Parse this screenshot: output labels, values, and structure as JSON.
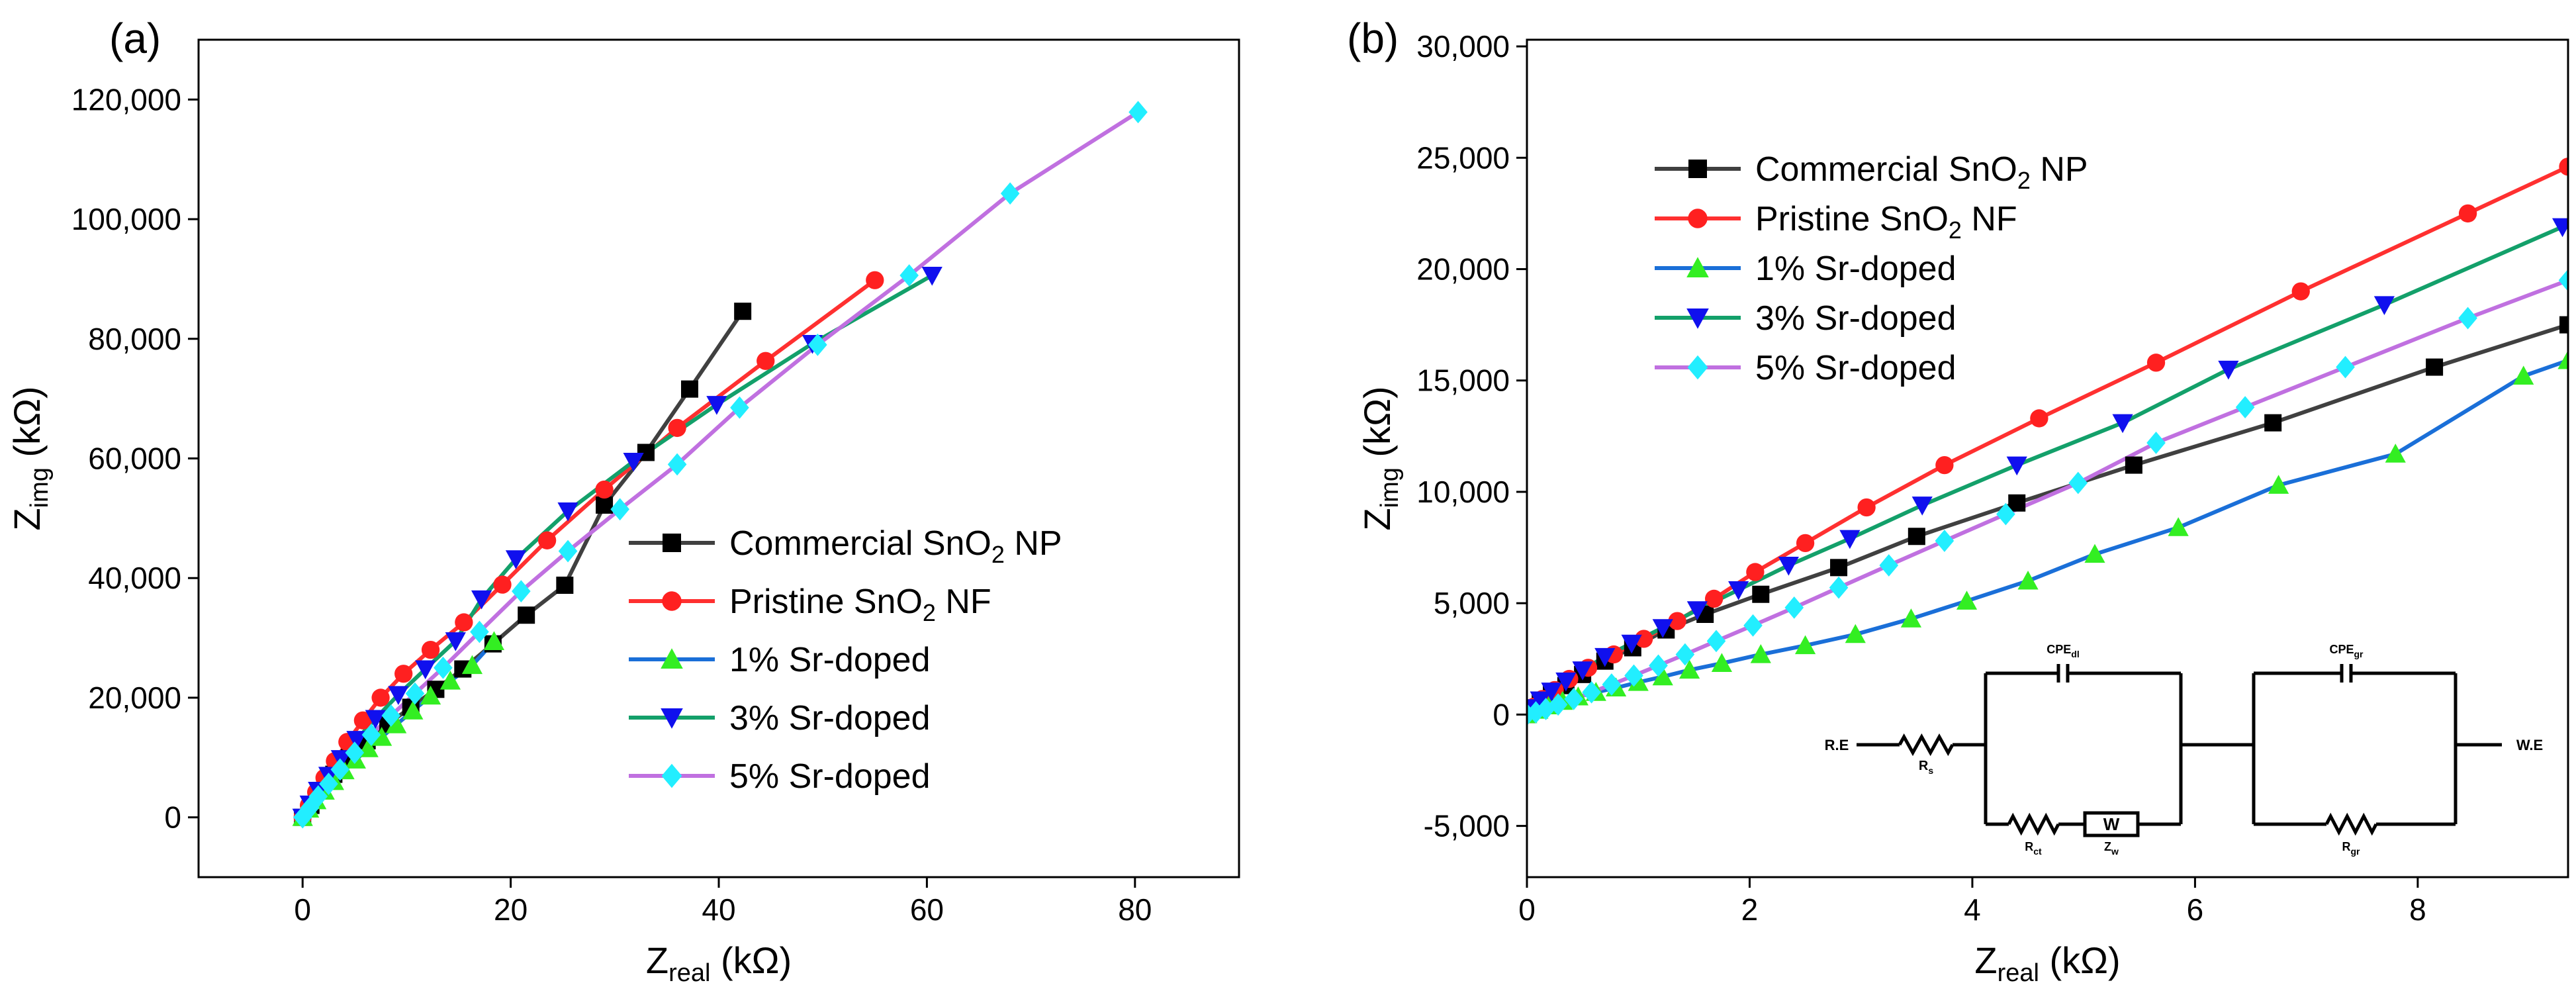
{
  "chart_data": [
    {
      "type": "line",
      "panel_label": "(a)",
      "xlabel": {
        "main": "Z",
        "sub": "real",
        "unit": " (kΩ)"
      },
      "ylabel": {
        "main": "Z",
        "sub": "img",
        "unit": " (kΩ)"
      },
      "xlim": [
        -10,
        90
      ],
      "ylim": [
        -10000,
        130000
      ],
      "xticks": [
        0,
        20,
        40,
        60,
        80
      ],
      "xtick_labels": [
        "0",
        "20",
        "40",
        "60",
        "80"
      ],
      "yticks": [
        0,
        20000,
        40000,
        60000,
        80000,
        100000,
        120000
      ],
      "ytick_labels": [
        "0",
        "20,000",
        "40,000",
        "60,000",
        "80,000",
        "100,000",
        "120,000"
      ],
      "grid": false,
      "legend_position": "center-right",
      "series": [
        {
          "name": "Commercial SnO2 NP",
          "name_main": "Commercial SnO",
          "name_sub": "2",
          "name_tail": " NP",
          "color": "#404040",
          "marker": "square",
          "x": [
            0,
            0.8,
            1.8,
            3,
            4.5,
            6.2,
            8.2,
            10.4,
            12.8,
            15.4,
            18.3,
            21.5,
            25.2,
            29,
            33,
            37.2,
            42.3
          ],
          "y": [
            0,
            2000,
            4500,
            7200,
            10000,
            12800,
            15600,
            18400,
            21400,
            24800,
            29000,
            33800,
            38800,
            52200,
            61000,
            71600,
            84600
          ]
        },
        {
          "name": "Pristine SnO2 NF",
          "name_main": "Pristine SnO",
          "name_sub": "2",
          "name_tail": " NF",
          "color": "#ff3030",
          "marker": "circle",
          "x": [
            0,
            0.6,
            1.3,
            2.1,
            3.1,
            4.3,
            5.8,
            7.5,
            9.7,
            12.3,
            15.5,
            19.2,
            23.5,
            29,
            36,
            44.5,
            55
          ],
          "y": [
            0,
            2000,
            4200,
            6600,
            9400,
            12600,
            16200,
            20000,
            24000,
            28000,
            32600,
            38900,
            46300,
            54800,
            65100,
            76300,
            89800
          ]
        },
        {
          "name": "1% Sr-doped",
          "name_main": "1% Sr-doped",
          "name_sub": "",
          "name_tail": "",
          "color": "#1a6fd8",
          "marker": "triangle-up",
          "x": [
            0,
            0.6,
            1.3,
            2.1,
            3,
            4,
            5.1,
            6.3,
            7.6,
            9,
            10.6,
            12.3,
            14.2,
            16.3,
            18.4
          ],
          "y": [
            0,
            1400,
            2800,
            4400,
            6000,
            7800,
            9600,
            11500,
            13400,
            15500,
            17800,
            20300,
            22800,
            25400,
            29400
          ]
        },
        {
          "name": "3% Sr-doped",
          "name_main": "3% Sr-doped",
          "name_sub": "",
          "name_tail": "",
          "color": "#13a06a",
          "marker": "triangle-down",
          "x": [
            0,
            0.7,
            1.5,
            2.5,
            3.7,
            5.2,
            7,
            9.2,
            11.8,
            14.7,
            17.2,
            20.5,
            25.5,
            31.8,
            39.8,
            49,
            60.5
          ],
          "y": [
            0,
            2200,
            4500,
            7000,
            9800,
            13000,
            16500,
            20500,
            24800,
            29500,
            36500,
            43200,
            51200,
            59500,
            69000,
            79200,
            90600
          ]
        },
        {
          "name": "5% Sr-doped",
          "name_main": "5% Sr-doped",
          "name_sub": "",
          "name_tail": "",
          "color": "#c070e0",
          "marker": "diamond",
          "x": [
            0,
            0.7,
            1.5,
            2.5,
            3.6,
            5,
            6.6,
            8.5,
            10.8,
            13.5,
            17,
            21,
            25.5,
            30.5,
            36,
            42,
            49.5,
            58.3,
            68,
            80.3
          ],
          "y": [
            0,
            1600,
            3500,
            5600,
            8000,
            10800,
            13800,
            17000,
            20700,
            25000,
            31000,
            37800,
            44500,
            51500,
            59000,
            68500,
            79000,
            90600,
            104300,
            117900
          ]
        }
      ]
    },
    {
      "type": "line",
      "panel_label": "(b)",
      "xlabel": {
        "main": "Z",
        "sub": "real",
        "unit": " (kΩ)"
      },
      "ylabel": {
        "main": "Z",
        "sub": "img",
        "unit": " (kΩ)"
      },
      "xlim": [
        0,
        9.35
      ],
      "ylim": [
        -7300,
        30300
      ],
      "xticks": [
        0,
        2,
        4,
        6,
        8
      ],
      "xtick_labels": [
        "0",
        "2",
        "4",
        "6",
        "8"
      ],
      "yticks": [
        -5000,
        0,
        5000,
        10000,
        15000,
        20000,
        25000,
        30000
      ],
      "ytick_labels": [
        "-5,000",
        "0",
        "5,000",
        "10,000",
        "15,000",
        "20,000",
        "25,000",
        "30,000"
      ],
      "grid": false,
      "legend_position": "upper-left",
      "series": [
        {
          "name": "Commercial SnO2 NP",
          "name_main": "Commercial SnO",
          "name_sub": "2",
          "name_tail": " NP",
          "color": "#404040",
          "marker": "square",
          "x": [
            0,
            0.05,
            0.12,
            0.22,
            0.35,
            0.5,
            0.7,
            0.95,
            1.25,
            1.6,
            2.1,
            2.8,
            3.5,
            4.4,
            5.45,
            6.7,
            8.15,
            9.35
          ],
          "y": [
            0,
            250,
            550,
            900,
            1300,
            1800,
            2400,
            3000,
            3800,
            4500,
            5400,
            6600,
            8000,
            9500,
            11200,
            13100,
            15600,
            17500
          ]
        },
        {
          "name": "Pristine SnO2 NF",
          "name_main": "Pristine SnO",
          "name_sub": "2",
          "name_tail": " NF",
          "color": "#ff3030",
          "marker": "circle",
          "x": [
            0,
            0.06,
            0.14,
            0.25,
            0.38,
            0.55,
            0.78,
            1.05,
            1.35,
            1.68,
            2.05,
            2.5,
            3.05,
            3.75,
            4.6,
            5.65,
            6.95,
            8.45,
            9.35
          ],
          "y": [
            0,
            350,
            700,
            1100,
            1600,
            2100,
            2700,
            3400,
            4200,
            5200,
            6400,
            7700,
            9300,
            11200,
            13300,
            15800,
            19000,
            22500,
            24600
          ]
        },
        {
          "name": "1% Sr-doped",
          "name_main": "1% Sr-doped",
          "name_sub": "",
          "name_tail": "",
          "color": "#1a6fd8",
          "marker": "triangle-up",
          "x": [
            0,
            0.1,
            0.2,
            0.32,
            0.46,
            0.62,
            0.8,
            1.0,
            1.22,
            1.46,
            1.75,
            2.1,
            2.5,
            2.95,
            3.45,
            3.95,
            4.5,
            5.1,
            5.85,
            6.75,
            7.8,
            8.95,
            9.35
          ],
          "y": [
            0,
            200,
            400,
            600,
            800,
            1000,
            1200,
            1450,
            1700,
            2000,
            2300,
            2700,
            3100,
            3600,
            4300,
            5100,
            6000,
            7200,
            8400,
            10300,
            11700,
            15200,
            15900
          ]
        },
        {
          "name": "3% Sr-doped",
          "name_main": "3% Sr-doped",
          "name_sub": "",
          "name_tail": "",
          "color": "#13a06a",
          "marker": "triangle-down",
          "x": [
            0,
            0.05,
            0.12,
            0.22,
            0.35,
            0.5,
            0.7,
            0.94,
            1.22,
            1.53,
            1.9,
            2.35,
            2.9,
            3.55,
            4.4,
            5.35,
            6.3,
            7.7,
            9.3
          ],
          "y": [
            0,
            300,
            650,
            1050,
            1500,
            2000,
            2600,
            3200,
            3900,
            4700,
            5600,
            6700,
            7900,
            9400,
            11200,
            13100,
            15500,
            18400,
            21900
          ]
        },
        {
          "name": "5% Sr-doped",
          "name_main": "5% Sr-doped",
          "name_sub": "",
          "name_tail": "",
          "color": "#c070e0",
          "marker": "diamond",
          "x": [
            0,
            0.08,
            0.17,
            0.28,
            0.42,
            0.58,
            0.76,
            0.96,
            1.18,
            1.42,
            1.7,
            2.03,
            2.4,
            2.8,
            3.25,
            3.75,
            4.3,
            4.95,
            5.65,
            6.45,
            7.35,
            8.45,
            9.35
          ],
          "y": [
            0,
            100,
            250,
            450,
            700,
            1000,
            1350,
            1750,
            2200,
            2700,
            3300,
            4000,
            4800,
            5700,
            6700,
            7800,
            9000,
            10400,
            12200,
            13800,
            15600,
            17800,
            19500
          ]
        }
      ]
    }
  ],
  "circuit": {
    "left_terminal": "R.E",
    "right_terminal": "W.E",
    "rs_label": "R",
    "rs_sub": "s",
    "cpe_dl_label": "CPE",
    "cpe_dl_sub": "dl",
    "rct_label": "R",
    "rct_sub": "ct",
    "w_symbol": "W",
    "zw_label": "Z",
    "zw_sub": "w",
    "cpe_gr_label": "CPE",
    "cpe_gr_sub": "gr",
    "rgr_label": "R",
    "rgr_sub": "gr"
  }
}
